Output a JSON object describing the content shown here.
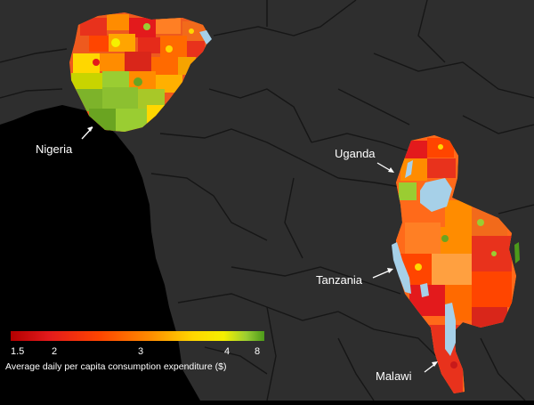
{
  "map": {
    "countries": [
      {
        "name": "Nigeria"
      },
      {
        "name": "Uganda"
      },
      {
        "name": "Tanzania"
      },
      {
        "name": "Malawi"
      }
    ]
  },
  "legend": {
    "ticks": [
      "1.5",
      "2",
      "3",
      "4",
      "8"
    ],
    "caption": "Average daily per capita consumption expenditure ($)",
    "colors": [
      "#b30000",
      "#e31a1c",
      "#ff4500",
      "#ff8c00",
      "#ffd700",
      "#f5f000",
      "#9acd32",
      "#4c9a1a"
    ]
  },
  "colors": {
    "land": "#2e2e2e",
    "ocean": "#000000",
    "border": "#1a1a1a",
    "lake": "#a6d0e8"
  }
}
